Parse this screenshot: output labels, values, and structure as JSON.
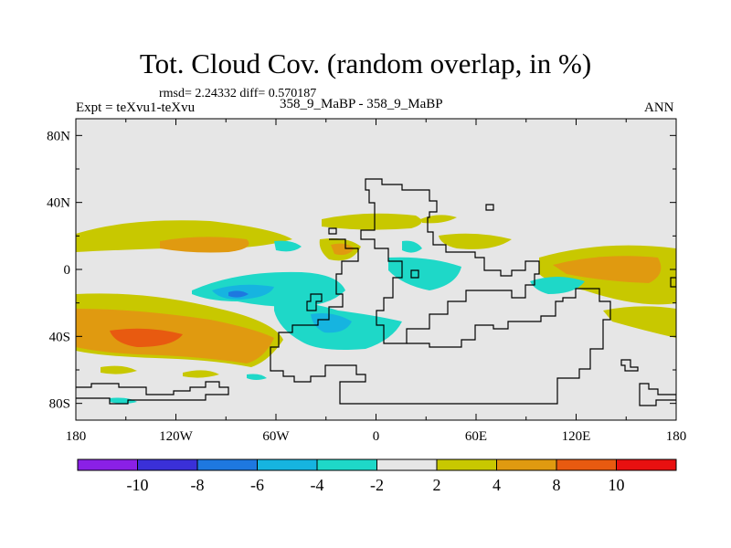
{
  "title": "Tot. Cloud Cov. (random overlap, in %)",
  "stats": "rmsd= 2.24332 diff= 0.570187",
  "experiment": "Expt = teXvu1-teXvu",
  "case": "358_9_MaBP - 358_9_MaBP",
  "season": "ANN",
  "map": {
    "lon_range": [
      -180,
      180
    ],
    "lat_range": [
      -90,
      90
    ],
    "lon_ticks": [
      {
        "value": -180,
        "label": "180"
      },
      {
        "value": -120,
        "label": "120W"
      },
      {
        "value": -60,
        "label": "60W"
      },
      {
        "value": 0,
        "label": "0"
      },
      {
        "value": 60,
        "label": "60E"
      },
      {
        "value": 120,
        "label": "120E"
      },
      {
        "value": 180,
        "label": "180"
      }
    ],
    "lat_ticks": [
      {
        "value": 80,
        "label": "80N"
      },
      {
        "value": 40,
        "label": "40N"
      },
      {
        "value": 0,
        "label": "0"
      },
      {
        "value": -40,
        "label": "40S"
      },
      {
        "value": -80,
        "label": "80S"
      }
    ],
    "background_color": "#e6e6e6",
    "coastline_color": "#000000"
  },
  "colorbar": {
    "levels": [
      "-10",
      "-8",
      "-6",
      "-4",
      "-2",
      "2",
      "4",
      "8",
      "10"
    ],
    "colors": [
      "#8a20e6",
      "#3a30d8",
      "#1e78e0",
      "#16b4e0",
      "#1ed8c8",
      "#e6e6e6",
      "#c8c800",
      "#e09a10",
      "#e85a10",
      "#e81010"
    ]
  }
}
